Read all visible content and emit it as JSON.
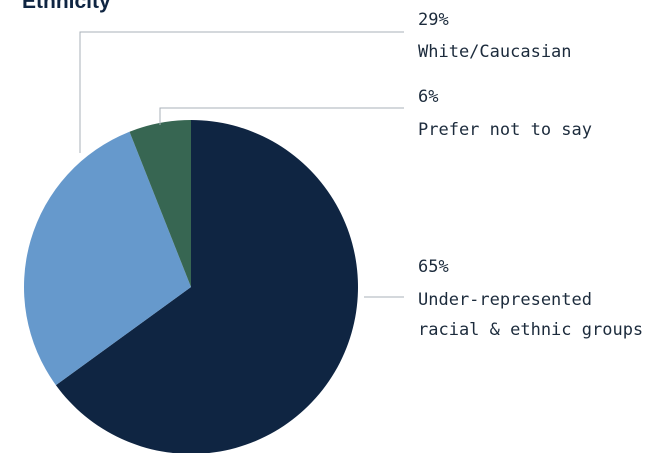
{
  "chart_data": {
    "type": "pie",
    "title": "Ethnicity",
    "start_angle_deg": 0,
    "direction": "clockwise",
    "slices": [
      {
        "label_lines": [
          "Under-represented",
          "racial & ethnic groups"
        ],
        "value": 65,
        "value_label": "65%",
        "color": "#0f2542"
      },
      {
        "label_lines": [
          "White/Caucasian"
        ],
        "value": 29,
        "value_label": "29%",
        "color": "#6699cc"
      },
      {
        "label_lines": [
          "Prefer not to say"
        ],
        "value": 6,
        "value_label": "6%",
        "color": "#376652"
      }
    ]
  }
}
